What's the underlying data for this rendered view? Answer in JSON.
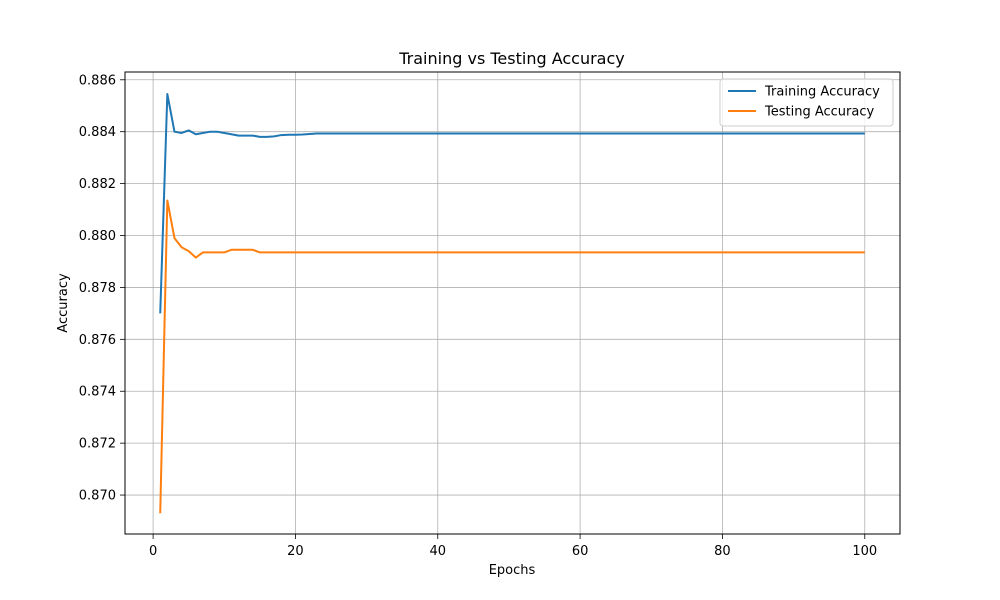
{
  "chart_data": {
    "type": "line",
    "title": "Training vs Testing Accuracy",
    "xlabel": "Epochs",
    "ylabel": "Accuracy",
    "xlim": [
      -3.95,
      104.95
    ],
    "ylim": [
      0.8685,
      0.8863
    ],
    "xticks": [
      0,
      20,
      40,
      60,
      80,
      100
    ],
    "xtick_labels": [
      "0",
      "20",
      "40",
      "60",
      "80",
      "100"
    ],
    "yticks": [
      0.87,
      0.872,
      0.874,
      0.876,
      0.878,
      0.88,
      0.882,
      0.884,
      0.886
    ],
    "ytick_labels": [
      "0.870",
      "0.872",
      "0.874",
      "0.876",
      "0.878",
      "0.880",
      "0.882",
      "0.884",
      "0.886"
    ],
    "grid": true,
    "legend": "top-right",
    "series": [
      {
        "name": "Training Accuracy",
        "color": "#1f77b4",
        "x": [
          1,
          2,
          3,
          4,
          5,
          6,
          7,
          8,
          9,
          10,
          11,
          12,
          13,
          14,
          15,
          16,
          17,
          18,
          19,
          20,
          21,
          22,
          23,
          24,
          100
        ],
        "y": [
          0.877,
          0.88545,
          0.884,
          0.88395,
          0.88405,
          0.8839,
          0.88395,
          0.884,
          0.884,
          0.88395,
          0.8839,
          0.88385,
          0.88385,
          0.88385,
          0.8838,
          0.8838,
          0.88382,
          0.88387,
          0.88388,
          0.88388,
          0.88389,
          0.88391,
          0.88393,
          0.88393,
          0.88393
        ]
      },
      {
        "name": "Testing Accuracy",
        "color": "#ff7f0e",
        "x": [
          1,
          2,
          3,
          4,
          5,
          6,
          7,
          8,
          9,
          10,
          11,
          12,
          13,
          14,
          15,
          16,
          17,
          100
        ],
        "y": [
          0.8693,
          0.88135,
          0.8799,
          0.87955,
          0.8794,
          0.87915,
          0.87935,
          0.87935,
          0.87935,
          0.87935,
          0.87945,
          0.87945,
          0.87945,
          0.87945,
          0.87935,
          0.87935,
          0.87935,
          0.87935
        ]
      }
    ]
  }
}
